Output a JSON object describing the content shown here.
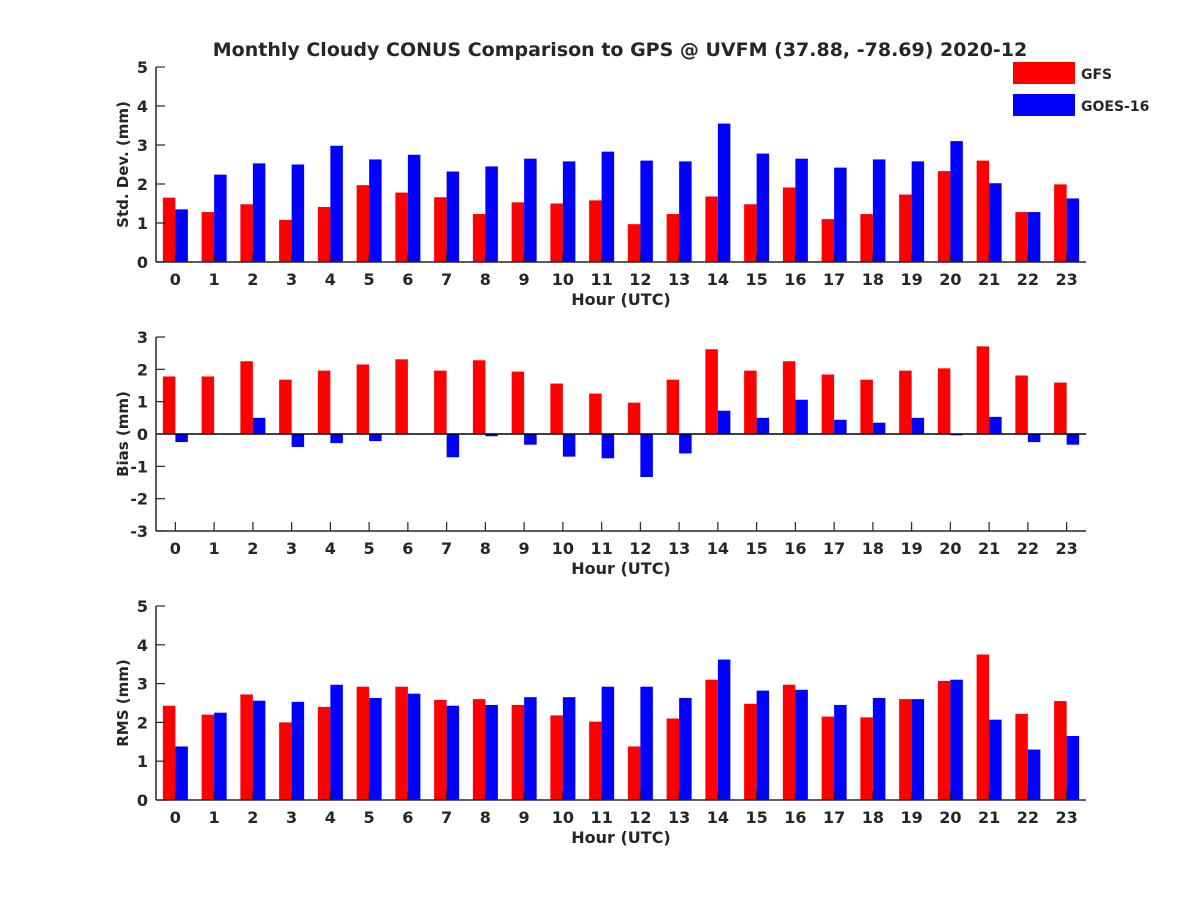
{
  "figure": {
    "title": "Monthly Cloudy CONUS Comparison to GPS @ UVFM (37.88, -78.69) 2020-12",
    "legend": [
      {
        "name": "GFS",
        "color": "#ff0000"
      },
      {
        "name": "GOES-16",
        "color": "#0000ff"
      }
    ]
  },
  "chart_data": [
    {
      "type": "bar",
      "ylabel": "Std. Dev. (mm)",
      "xlabel": "Hour (UTC)",
      "categories": [
        "0",
        "1",
        "2",
        "3",
        "4",
        "5",
        "6",
        "7",
        "8",
        "9",
        "10",
        "11",
        "12",
        "13",
        "14",
        "15",
        "16",
        "17",
        "18",
        "19",
        "20",
        "21",
        "22",
        "23"
      ],
      "ylim": [
        0,
        5
      ],
      "yticks": [
        0,
        1,
        2,
        3,
        4,
        5
      ],
      "legend": "top-right",
      "series": [
        {
          "name": "GFS",
          "color": "#ff0000",
          "values": [
            1.65,
            1.28,
            1.48,
            1.08,
            1.41,
            1.97,
            1.78,
            1.66,
            1.23,
            1.53,
            1.5,
            1.58,
            0.97,
            1.23,
            1.68,
            1.48,
            1.91,
            1.1,
            1.23,
            1.73,
            2.33,
            2.6,
            1.28,
            1.99
          ]
        },
        {
          "name": "GOES-16",
          "color": "#0000ff",
          "values": [
            1.35,
            2.24,
            2.53,
            2.5,
            2.98,
            2.63,
            2.75,
            2.32,
            2.45,
            2.65,
            2.58,
            2.83,
            2.6,
            2.58,
            3.55,
            2.78,
            2.65,
            2.42,
            2.63,
            2.58,
            3.1,
            2.02,
            1.28,
            1.63
          ]
        }
      ]
    },
    {
      "type": "bar",
      "ylabel": "Bias (mm)",
      "xlabel": "Hour (UTC)",
      "categories": [
        "0",
        "1",
        "2",
        "3",
        "4",
        "5",
        "6",
        "7",
        "8",
        "9",
        "10",
        "11",
        "12",
        "13",
        "14",
        "15",
        "16",
        "17",
        "18",
        "19",
        "20",
        "21",
        "22",
        "23"
      ],
      "ylim": [
        -3,
        3
      ],
      "yticks": [
        -3,
        -2,
        -1,
        0,
        1,
        2,
        3
      ],
      "series": [
        {
          "name": "GFS",
          "color": "#ff0000",
          "values": [
            1.78,
            1.78,
            2.25,
            1.68,
            1.96,
            2.15,
            2.31,
            1.96,
            2.28,
            1.93,
            1.56,
            1.25,
            0.97,
            1.68,
            2.62,
            1.96,
            2.25,
            1.84,
            1.68,
            1.96,
            2.03,
            2.71,
            1.81,
            1.59
          ]
        },
        {
          "name": "GOES-16",
          "color": "#0000ff",
          "values": [
            -0.25,
            0,
            0.5,
            -0.4,
            -0.28,
            -0.22,
            0,
            -0.72,
            -0.07,
            -0.33,
            -0.7,
            -0.75,
            -1.33,
            -0.6,
            0.72,
            0.5,
            1.06,
            0.44,
            0.35,
            0.5,
            -0.04,
            0.53,
            -0.25,
            -0.33
          ]
        }
      ]
    },
    {
      "type": "bar",
      "ylabel": "RMS (mm)",
      "xlabel": "Hour (UTC)",
      "categories": [
        "0",
        "1",
        "2",
        "3",
        "4",
        "5",
        "6",
        "7",
        "8",
        "9",
        "10",
        "11",
        "12",
        "13",
        "14",
        "15",
        "16",
        "17",
        "18",
        "19",
        "20",
        "21",
        "22",
        "23"
      ],
      "ylim": [
        0,
        5
      ],
      "yticks": [
        0,
        1,
        2,
        3,
        4,
        5
      ],
      "series": [
        {
          "name": "GFS",
          "color": "#ff0000",
          "values": [
            2.43,
            2.2,
            2.72,
            2.0,
            2.4,
            2.92,
            2.92,
            2.58,
            2.6,
            2.45,
            2.18,
            2.02,
            1.38,
            2.1,
            3.1,
            2.48,
            2.97,
            2.15,
            2.13,
            2.6,
            3.07,
            3.75,
            2.22,
            2.55
          ]
        },
        {
          "name": "GOES-16",
          "color": "#0000ff",
          "values": [
            1.38,
            2.25,
            2.56,
            2.53,
            2.97,
            2.63,
            2.74,
            2.43,
            2.45,
            2.65,
            2.65,
            2.92,
            2.92,
            2.63,
            3.62,
            2.82,
            2.84,
            2.45,
            2.63,
            2.6,
            3.1,
            2.07,
            1.3,
            1.65
          ]
        }
      ]
    }
  ]
}
